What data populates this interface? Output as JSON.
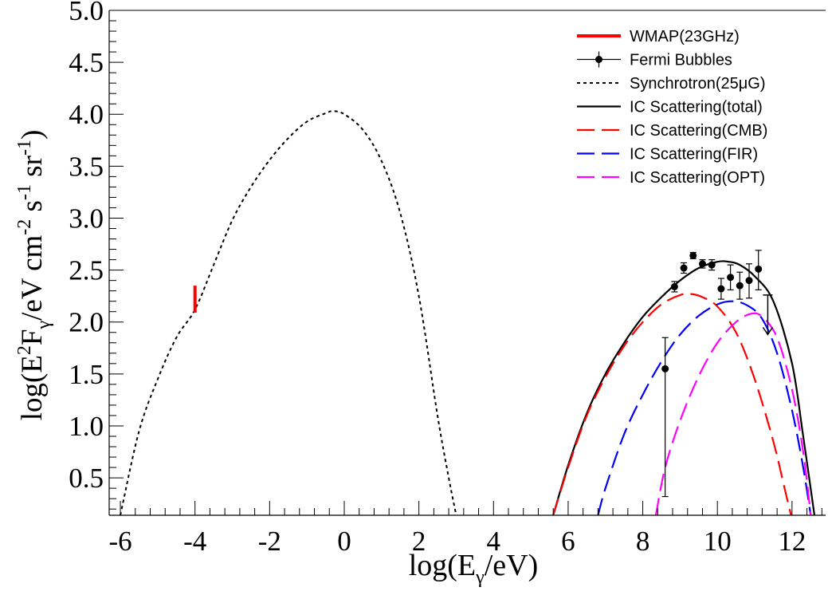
{
  "chart_data": {
    "type": "line",
    "xlabel": {
      "prefix": "log(E",
      "sub": "γ",
      "suffix": "/eV)"
    },
    "ylabel": {
      "parts": [
        {
          "t": "log(E",
          "k": "n"
        },
        {
          "t": "2",
          "k": "sup"
        },
        {
          "t": "F",
          "k": "n"
        },
        {
          "t": "γ",
          "k": "sub"
        },
        {
          "t": "/eV cm",
          "k": "n"
        },
        {
          "t": "-2",
          "k": "sup"
        },
        {
          "t": " s",
          "k": "n"
        },
        {
          "t": "-1",
          "k": "sup"
        },
        {
          "t": " sr",
          "k": "n"
        },
        {
          "t": "-1",
          "k": "sup"
        },
        {
          "t": ")",
          "k": "n"
        }
      ]
    },
    "xlim": [
      -6.3,
      12.9
    ],
    "ylim": [
      0.14,
      5.0
    ],
    "xticks": [
      -6,
      -4,
      -2,
      0,
      2,
      4,
      6,
      8,
      10,
      12
    ],
    "xtick_labels": [
      "-6",
      "-4",
      "-2",
      "0",
      "2",
      "4",
      "6",
      "8",
      "10",
      "12"
    ],
    "yticks": [
      0.5,
      1.0,
      1.5,
      2.0,
      2.5,
      3.0,
      3.5,
      4.0,
      4.5,
      5.0
    ],
    "ytick_labels": [
      "0.5",
      "1.0",
      "1.5",
      "2.0",
      "2.5",
      "3.0",
      "3.5",
      "4.0",
      "4.5",
      "5.0"
    ],
    "grid": false,
    "legend_position": "top-right",
    "series": [
      {
        "name": "WMAP(23GHz)",
        "kind": "bar",
        "color": "#ff0000",
        "x": [
          -4.0
        ],
        "ylow": [
          2.09
        ],
        "yhigh": [
          2.35
        ]
      },
      {
        "name": "Fermi Bubbles",
        "kind": "points",
        "color": "#000000",
        "x": [
          8.6,
          8.85,
          9.1,
          9.35,
          9.6,
          9.85,
          10.1,
          10.35,
          10.6,
          10.85,
          11.1
        ],
        "y": [
          1.55,
          2.34,
          2.52,
          2.64,
          2.56,
          2.55,
          2.32,
          2.43,
          2.35,
          2.4,
          2.51
        ],
        "yerr_low": [
          1.23,
          0.05,
          0.05,
          0.03,
          0.04,
          0.05,
          0.1,
          0.12,
          0.13,
          0.17,
          0.2
        ],
        "yerr_high": [
          0.3,
          0.05,
          0.05,
          0.03,
          0.04,
          0.05,
          0.1,
          0.12,
          0.13,
          0.16,
          0.18
        ],
        "upper_limit": {
          "x": 11.35,
          "ytop": 2.26,
          "ybottom": 1.88
        }
      },
      {
        "name": "Synchrotron(25μG)",
        "kind": "line",
        "style": "dotted",
        "color": "#000000",
        "x": [
          -6.0,
          -5.5,
          -5.0,
          -4.5,
          -4.0,
          -3.5,
          -3.0,
          -2.5,
          -2.0,
          -1.5,
          -1.0,
          -0.5,
          -0.3,
          0.0,
          0.5,
          1.0,
          1.5,
          2.0,
          2.5,
          2.8,
          3.0
        ],
        "y": [
          0.14,
          0.95,
          1.45,
          1.85,
          2.12,
          2.55,
          2.98,
          3.3,
          3.56,
          3.77,
          3.93,
          4.01,
          4.03,
          4.0,
          3.85,
          3.55,
          3.05,
          2.25,
          1.1,
          0.5,
          0.14
        ]
      },
      {
        "name": "IC Scattering(total)",
        "kind": "line",
        "style": "solid",
        "color": "#000000",
        "x": [
          5.6,
          6.0,
          6.5,
          7.0,
          7.5,
          8.0,
          8.5,
          9.0,
          9.5,
          10.0,
          10.3,
          10.6,
          11.0,
          11.5,
          12.0,
          12.3,
          12.6
        ],
        "y": [
          0.14,
          0.62,
          1.12,
          1.5,
          1.8,
          2.05,
          2.24,
          2.4,
          2.52,
          2.58,
          2.58,
          2.55,
          2.44,
          2.2,
          1.6,
          0.9,
          0.14
        ]
      },
      {
        "name": "IC Scattering(CMB)",
        "kind": "line",
        "style": "dashed",
        "color": "#ff0000",
        "x": [
          5.6,
          6.0,
          6.5,
          7.0,
          7.5,
          8.0,
          8.5,
          9.0,
          9.3,
          9.6,
          10.0,
          10.5,
          11.0,
          11.5,
          11.8,
          12.0
        ],
        "y": [
          0.14,
          0.6,
          1.1,
          1.47,
          1.77,
          2.0,
          2.17,
          2.26,
          2.27,
          2.24,
          2.15,
          1.9,
          1.45,
          0.85,
          0.4,
          0.1
        ]
      },
      {
        "name": "IC Scattering(FIR)",
        "kind": "line",
        "style": "dashed",
        "color": "#0000ff",
        "x": [
          6.8,
          7.0,
          7.5,
          8.0,
          8.5,
          9.0,
          9.5,
          10.0,
          10.4,
          10.8,
          11.2,
          11.6,
          12.0,
          12.3,
          12.5
        ],
        "y": [
          0.14,
          0.4,
          0.92,
          1.3,
          1.62,
          1.88,
          2.06,
          2.17,
          2.2,
          2.16,
          2.03,
          1.7,
          1.15,
          0.6,
          0.14
        ]
      },
      {
        "name": "IC Scattering(OPT)",
        "kind": "line",
        "style": "dashed",
        "color": "#ff00ff",
        "x": [
          8.35,
          8.6,
          9.0,
          9.5,
          10.0,
          10.5,
          10.9,
          11.2,
          11.6,
          12.0,
          12.3,
          12.5
        ],
        "y": [
          0.14,
          0.6,
          1.05,
          1.48,
          1.8,
          2.0,
          2.08,
          2.05,
          1.85,
          1.35,
          0.75,
          0.14
        ]
      }
    ]
  }
}
